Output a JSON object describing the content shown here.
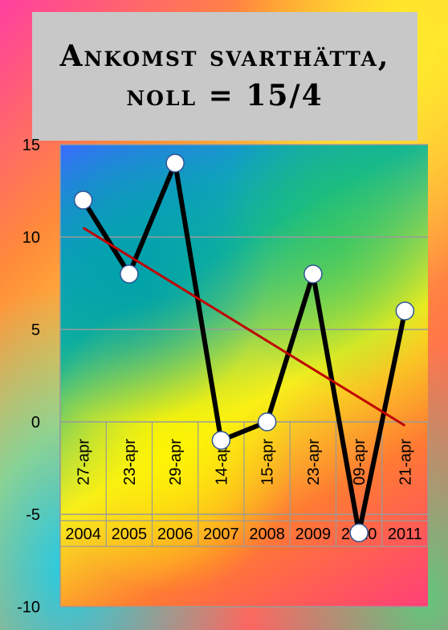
{
  "chart_data": {
    "type": "line",
    "title": "Ankomst svarthätta,\nnoll = 15/4",
    "categories": [
      "2004",
      "2005",
      "2006",
      "2007",
      "2008",
      "2009",
      "2010",
      "2011"
    ],
    "date_labels": [
      "27-apr",
      "23-apr",
      "29-apr",
      "14-apr",
      "15-apr",
      "23-apr",
      "09-apr",
      "21-apr"
    ],
    "series": [
      {
        "values": [
          12,
          8,
          14,
          -1,
          0,
          8,
          -6,
          6
        ],
        "color": "#000000"
      }
    ],
    "trendline": {
      "type": "linear",
      "start": 10.5,
      "end": -0.2,
      "color": "#c00000"
    },
    "ylim": [
      -10,
      15
    ],
    "yticks": [
      15,
      10,
      5,
      0,
      -5,
      -10
    ],
    "grid": true,
    "legend": "none",
    "marker_fill": "#ffffff",
    "marker_stroke": "#2f5597"
  }
}
